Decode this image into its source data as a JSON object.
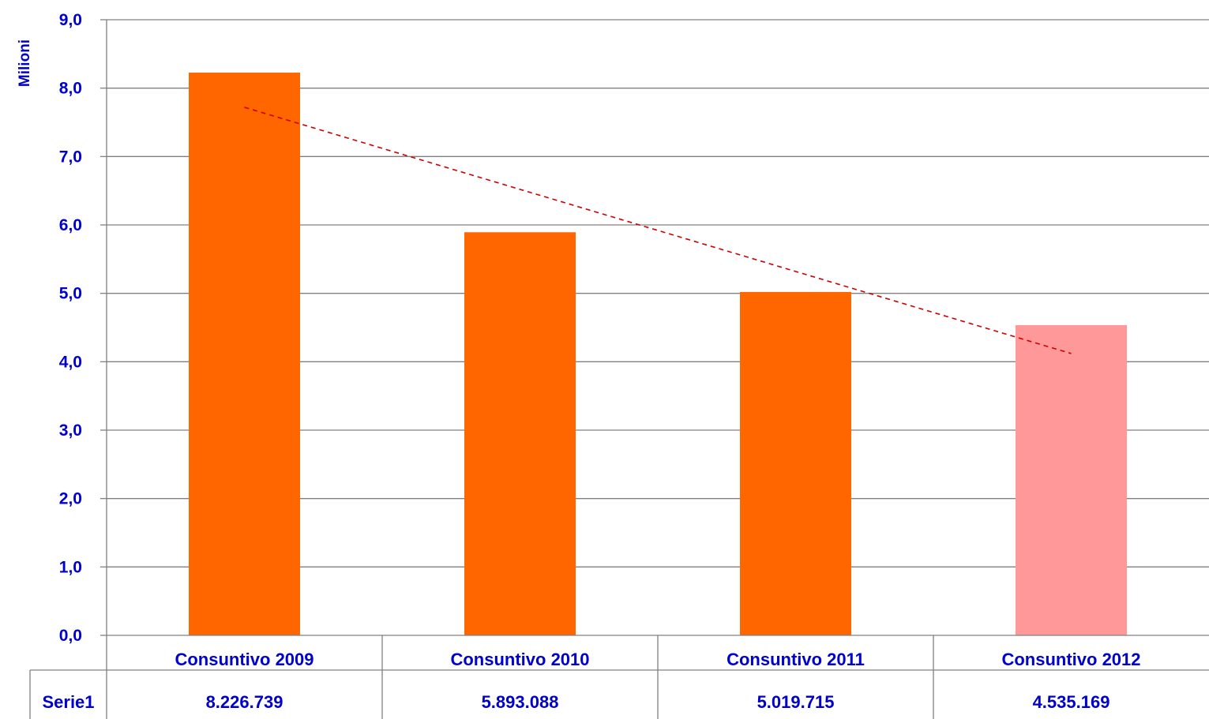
{
  "chart_data": {
    "type": "bar",
    "y_axis_title": "Milioni",
    "categories": [
      "Consuntivo 2009",
      "Consuntivo 2010",
      "Consuntivo 2011",
      "Consuntivo 2012"
    ],
    "series": [
      {
        "name": "Serie1",
        "values": [
          8.226739,
          5.893088,
          5.019715,
          4.535169
        ],
        "value_labels": [
          "8.226.739",
          "5.893.088",
          "5.019.715",
          "4.535.169"
        ],
        "bar_colors": [
          "#ff6600",
          "#ff6600",
          "#ff6600",
          "#ff9999"
        ]
      }
    ],
    "trendline": {
      "type": "linear",
      "style": "dashed",
      "color": "#cc0000",
      "start": 7.72,
      "end": 4.12
    },
    "y_ticks": [
      "0,0",
      "1,0",
      "2,0",
      "3,0",
      "4,0",
      "5,0",
      "6,0",
      "7,0",
      "8,0",
      "9,0"
    ],
    "ylim": [
      0,
      9
    ],
    "grid": true,
    "data_table": true
  },
  "colors": {
    "axis_text": "#0000cc",
    "gridline": "#808080",
    "table_text": "#0000cc"
  }
}
